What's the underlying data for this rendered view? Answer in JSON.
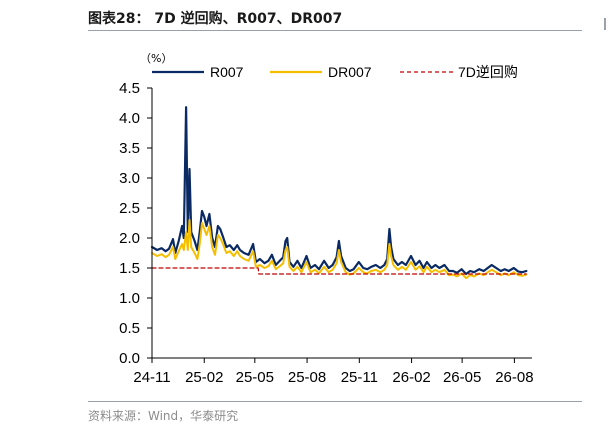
{
  "header": {
    "title": "图表28： 7D 逆回购、R007、DR007"
  },
  "footer": {
    "source": "资料来源：Wind，华泰研究"
  },
  "colors": {
    "r007": "#0b2a63",
    "dr007": "#f5bf00",
    "reverse_repo": "#c00000",
    "rule": "#9aa0a6"
  },
  "chart_data": {
    "type": "line",
    "title": "",
    "unit_label": "（%）",
    "ylim": [
      0.0,
      4.5
    ],
    "y_ticks": [
      "0.0",
      "0.5",
      "1.0",
      "1.5",
      "2.0",
      "2.5",
      "3.0",
      "3.5",
      "4.0",
      "4.5"
    ],
    "x_range": [
      "2024-11-01",
      "2026-09-01"
    ],
    "x_ticks": [
      {
        "label": "24-11",
        "date": "2024-11-01"
      },
      {
        "label": "25-02",
        "date": "2025-02-01"
      },
      {
        "label": "25-05",
        "date": "2025-05-01"
      },
      {
        "label": "25-08",
        "date": "2025-08-01"
      },
      {
        "label": "25-11",
        "date": "2025-11-01"
      },
      {
        "label": "26-02",
        "date": "2026-02-01"
      },
      {
        "label": "26-05",
        "date": "2026-05-01"
      },
      {
        "label": "26-08",
        "date": "2026-08-01"
      }
    ],
    "legend_position": "top",
    "series": [
      {
        "name": "R007",
        "style": "solid",
        "points": [
          [
            "2024-11-01",
            1.85
          ],
          [
            "2024-11-10",
            1.8
          ],
          [
            "2024-11-18",
            1.83
          ],
          [
            "2024-11-25",
            1.78
          ],
          [
            "2024-12-01",
            1.82
          ],
          [
            "2024-12-08",
            1.98
          ],
          [
            "2024-12-12",
            1.75
          ],
          [
            "2024-12-18",
            1.95
          ],
          [
            "2024-12-24",
            2.2
          ],
          [
            "2024-12-27",
            2.0
          ],
          [
            "2024-12-31",
            4.18
          ],
          [
            "2025-01-03",
            2.1
          ],
          [
            "2025-01-06",
            3.15
          ],
          [
            "2025-01-09",
            2.1
          ],
          [
            "2025-01-15",
            1.95
          ],
          [
            "2025-01-20",
            1.8
          ],
          [
            "2025-01-24",
            2.1
          ],
          [
            "2025-01-28",
            2.45
          ],
          [
            "2025-02-01",
            2.35
          ],
          [
            "2025-02-05",
            2.2
          ],
          [
            "2025-02-10",
            2.4
          ],
          [
            "2025-02-15",
            2.0
          ],
          [
            "2025-02-20",
            1.85
          ],
          [
            "2025-02-25",
            2.2
          ],
          [
            "2025-03-01",
            2.15
          ],
          [
            "2025-03-06",
            2.02
          ],
          [
            "2025-03-12",
            1.85
          ],
          [
            "2025-03-18",
            1.88
          ],
          [
            "2025-03-25",
            1.8
          ],
          [
            "2025-03-31",
            1.88
          ],
          [
            "2025-04-05",
            1.8
          ],
          [
            "2025-04-12",
            1.75
          ],
          [
            "2025-04-20",
            1.72
          ],
          [
            "2025-04-28",
            1.9
          ],
          [
            "2025-05-03",
            1.6
          ],
          [
            "2025-05-10",
            1.65
          ],
          [
            "2025-05-18",
            1.58
          ],
          [
            "2025-05-25",
            1.62
          ],
          [
            "2025-05-31",
            1.72
          ],
          [
            "2025-06-07",
            1.55
          ],
          [
            "2025-06-14",
            1.62
          ],
          [
            "2025-06-20",
            1.68
          ],
          [
            "2025-06-24",
            1.95
          ],
          [
            "2025-06-27",
            2.0
          ],
          [
            "2025-07-01",
            1.6
          ],
          [
            "2025-07-08",
            1.52
          ],
          [
            "2025-07-15",
            1.62
          ],
          [
            "2025-07-22",
            1.5
          ],
          [
            "2025-07-31",
            1.7
          ],
          [
            "2025-08-07",
            1.5
          ],
          [
            "2025-08-15",
            1.55
          ],
          [
            "2025-08-22",
            1.48
          ],
          [
            "2025-08-31",
            1.62
          ],
          [
            "2025-09-08",
            1.5
          ],
          [
            "2025-09-15",
            1.55
          ],
          [
            "2025-09-22",
            1.68
          ],
          [
            "2025-09-26",
            1.95
          ],
          [
            "2025-09-30",
            1.7
          ],
          [
            "2025-10-08",
            1.5
          ],
          [
            "2025-10-15",
            1.45
          ],
          [
            "2025-10-22",
            1.48
          ],
          [
            "2025-10-31",
            1.6
          ],
          [
            "2025-11-08",
            1.5
          ],
          [
            "2025-11-15",
            1.48
          ],
          [
            "2025-11-22",
            1.52
          ],
          [
            "2025-11-30",
            1.55
          ],
          [
            "2025-12-08",
            1.5
          ],
          [
            "2025-12-15",
            1.55
          ],
          [
            "2025-12-20",
            1.65
          ],
          [
            "2025-12-24",
            2.15
          ],
          [
            "2025-12-27",
            1.85
          ],
          [
            "2025-12-31",
            1.65
          ],
          [
            "2026-01-08",
            1.55
          ],
          [
            "2026-01-15",
            1.6
          ],
          [
            "2026-01-22",
            1.55
          ],
          [
            "2026-01-31",
            1.7
          ],
          [
            "2026-02-08",
            1.55
          ],
          [
            "2026-02-15",
            1.62
          ],
          [
            "2026-02-22",
            1.5
          ],
          [
            "2026-02-28",
            1.6
          ],
          [
            "2026-03-08",
            1.5
          ],
          [
            "2026-03-15",
            1.55
          ],
          [
            "2026-03-22",
            1.5
          ],
          [
            "2026-03-31",
            1.55
          ],
          [
            "2026-04-08",
            1.45
          ],
          [
            "2026-04-15",
            1.45
          ],
          [
            "2026-04-22",
            1.42
          ],
          [
            "2026-04-30",
            1.48
          ],
          [
            "2026-05-08",
            1.4
          ],
          [
            "2026-05-15",
            1.45
          ],
          [
            "2026-05-22",
            1.43
          ],
          [
            "2026-05-31",
            1.48
          ],
          [
            "2026-06-08",
            1.45
          ],
          [
            "2026-06-15",
            1.5
          ],
          [
            "2026-06-22",
            1.55
          ],
          [
            "2026-06-30",
            1.5
          ],
          [
            "2026-07-08",
            1.45
          ],
          [
            "2026-07-15",
            1.48
          ],
          [
            "2026-07-22",
            1.45
          ],
          [
            "2026-07-31",
            1.5
          ],
          [
            "2026-08-08",
            1.44
          ],
          [
            "2026-08-15",
            1.43
          ],
          [
            "2026-08-22",
            1.45
          ]
        ]
      },
      {
        "name": "DR007",
        "style": "solid",
        "points": [
          [
            "2024-11-01",
            1.75
          ],
          [
            "2024-11-10",
            1.7
          ],
          [
            "2024-11-18",
            1.73
          ],
          [
            "2024-11-25",
            1.68
          ],
          [
            "2024-12-01",
            1.72
          ],
          [
            "2024-12-08",
            1.85
          ],
          [
            "2024-12-12",
            1.65
          ],
          [
            "2024-12-18",
            1.78
          ],
          [
            "2024-12-24",
            1.9
          ],
          [
            "2024-12-27",
            1.8
          ],
          [
            "2024-12-31",
            2.1
          ],
          [
            "2025-01-03",
            1.8
          ],
          [
            "2025-01-06",
            2.3
          ],
          [
            "2025-01-09",
            1.85
          ],
          [
            "2025-01-15",
            1.75
          ],
          [
            "2025-01-20",
            1.65
          ],
          [
            "2025-01-24",
            1.9
          ],
          [
            "2025-01-28",
            2.25
          ],
          [
            "2025-02-01",
            2.15
          ],
          [
            "2025-02-05",
            2.05
          ],
          [
            "2025-02-10",
            2.2
          ],
          [
            "2025-02-15",
            1.85
          ],
          [
            "2025-02-20",
            1.72
          ],
          [
            "2025-02-25",
            2.05
          ],
          [
            "2025-03-01",
            2.0
          ],
          [
            "2025-03-06",
            1.9
          ],
          [
            "2025-03-12",
            1.75
          ],
          [
            "2025-03-18",
            1.78
          ],
          [
            "2025-03-25",
            1.7
          ],
          [
            "2025-03-31",
            1.78
          ],
          [
            "2025-04-05",
            1.7
          ],
          [
            "2025-04-12",
            1.65
          ],
          [
            "2025-04-20",
            1.62
          ],
          [
            "2025-04-28",
            1.78
          ],
          [
            "2025-05-03",
            1.52
          ],
          [
            "2025-05-10",
            1.55
          ],
          [
            "2025-05-18",
            1.5
          ],
          [
            "2025-05-25",
            1.53
          ],
          [
            "2025-05-31",
            1.62
          ],
          [
            "2025-06-07",
            1.48
          ],
          [
            "2025-06-14",
            1.53
          ],
          [
            "2025-06-20",
            1.58
          ],
          [
            "2025-06-24",
            1.8
          ],
          [
            "2025-06-27",
            1.85
          ],
          [
            "2025-07-01",
            1.52
          ],
          [
            "2025-07-08",
            1.45
          ],
          [
            "2025-07-15",
            1.52
          ],
          [
            "2025-07-22",
            1.43
          ],
          [
            "2025-07-31",
            1.6
          ],
          [
            "2025-08-07",
            1.43
          ],
          [
            "2025-08-15",
            1.47
          ],
          [
            "2025-08-22",
            1.41
          ],
          [
            "2025-08-31",
            1.52
          ],
          [
            "2025-09-08",
            1.43
          ],
          [
            "2025-09-15",
            1.47
          ],
          [
            "2025-09-22",
            1.58
          ],
          [
            "2025-09-26",
            1.8
          ],
          [
            "2025-09-30",
            1.6
          ],
          [
            "2025-10-08",
            1.43
          ],
          [
            "2025-10-15",
            1.39
          ],
          [
            "2025-10-22",
            1.41
          ],
          [
            "2025-10-31",
            1.5
          ],
          [
            "2025-11-08",
            1.43
          ],
          [
            "2025-11-15",
            1.41
          ],
          [
            "2025-11-22",
            1.45
          ],
          [
            "2025-11-30",
            1.47
          ],
          [
            "2025-12-08",
            1.43
          ],
          [
            "2025-12-15",
            1.47
          ],
          [
            "2025-12-20",
            1.55
          ],
          [
            "2025-12-24",
            1.9
          ],
          [
            "2025-12-27",
            1.7
          ],
          [
            "2025-12-31",
            1.55
          ],
          [
            "2026-01-08",
            1.47
          ],
          [
            "2026-01-15",
            1.52
          ],
          [
            "2026-01-22",
            1.47
          ],
          [
            "2026-01-31",
            1.6
          ],
          [
            "2026-02-08",
            1.47
          ],
          [
            "2026-02-15",
            1.53
          ],
          [
            "2026-02-22",
            1.43
          ],
          [
            "2026-02-28",
            1.52
          ],
          [
            "2026-03-08",
            1.43
          ],
          [
            "2026-03-15",
            1.47
          ],
          [
            "2026-03-22",
            1.43
          ],
          [
            "2026-03-31",
            1.47
          ],
          [
            "2026-04-08",
            1.38
          ],
          [
            "2026-04-15",
            1.39
          ],
          [
            "2026-04-22",
            1.36
          ],
          [
            "2026-04-30",
            1.41
          ],
          [
            "2026-05-08",
            1.33
          ],
          [
            "2026-05-15",
            1.38
          ],
          [
            "2026-05-22",
            1.36
          ],
          [
            "2026-05-31",
            1.41
          ],
          [
            "2026-06-08",
            1.38
          ],
          [
            "2026-06-15",
            1.43
          ],
          [
            "2026-06-22",
            1.47
          ],
          [
            "2026-06-30",
            1.43
          ],
          [
            "2026-07-08",
            1.38
          ],
          [
            "2026-07-15",
            1.41
          ],
          [
            "2026-07-22",
            1.38
          ],
          [
            "2026-07-31",
            1.43
          ],
          [
            "2026-08-08",
            1.38
          ],
          [
            "2026-08-15",
            1.37
          ],
          [
            "2026-08-22",
            1.39
          ]
        ]
      },
      {
        "name": "7D逆回购",
        "style": "dashed",
        "points": [
          [
            "2024-11-01",
            1.5
          ],
          [
            "2025-05-07",
            1.5
          ],
          [
            "2025-05-08",
            1.4
          ],
          [
            "2026-08-22",
            1.4
          ]
        ]
      }
    ]
  }
}
